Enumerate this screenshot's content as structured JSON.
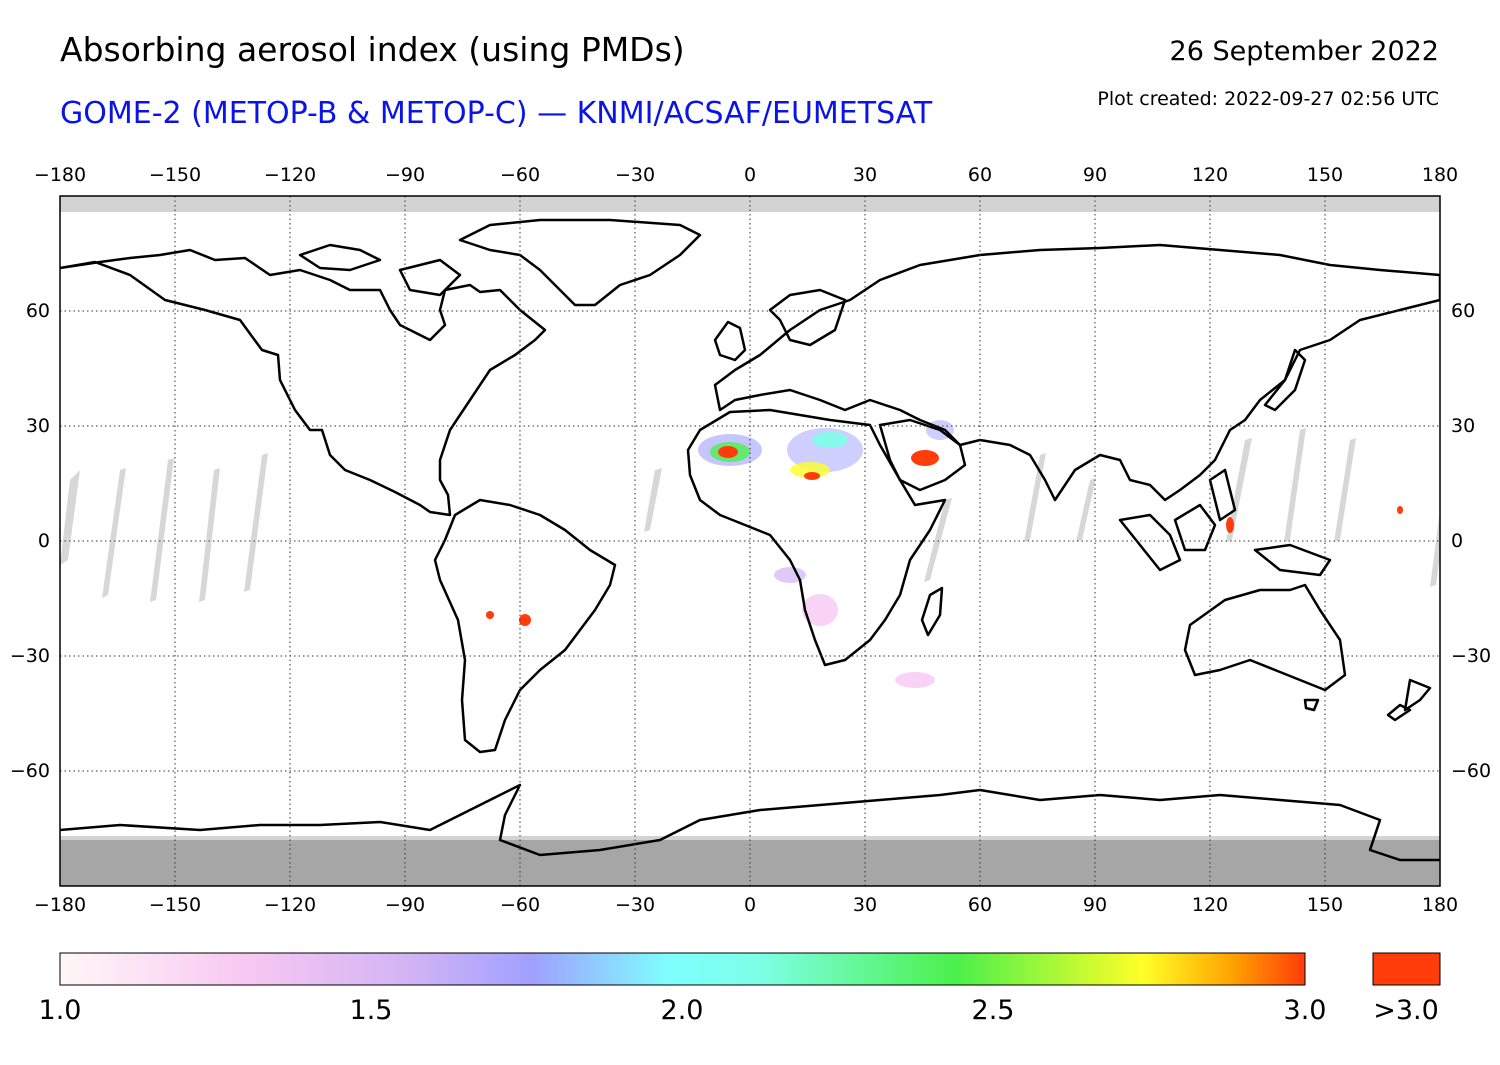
{
  "header": {
    "title": "Absorbing aerosol index (using PMDs)",
    "subtitle": "GOME-2 (METOP-B & METOP-C) — KNMI/ACSAF/EUMETSAT",
    "date": "26 September 2022",
    "created": "Plot created: 2022-09-27 02:56 UTC"
  },
  "map": {
    "projection": "equirectangular",
    "lon_range": [
      -180,
      180
    ],
    "lat_range": [
      -90,
      90
    ],
    "lon_ticks": [
      "−180",
      "−150",
      "−120",
      "−90",
      "−60",
      "−30",
      "0",
      "30",
      "60",
      "90",
      "120",
      "150",
      "180"
    ],
    "lat_ticks": [
      "60",
      "30",
      "0",
      "−30",
      "−60"
    ],
    "grid": "dotted",
    "no_data_color": "#d3d3d3",
    "polar_night_color": "#a6a6a6",
    "coastline_color": "#000000"
  },
  "colorbar": {
    "min_label": "1.0",
    "mid_labels": [
      "1.5",
      "2.0",
      "2.5"
    ],
    "max_label": "3.0",
    "overflow_label": ">3.0",
    "overflow_color": "#ff3c0a",
    "stops": [
      "#fff7f7",
      "#f7c8f2",
      "#d2b4f4",
      "#a0a0ff",
      "#7ee8ff",
      "#7effe8",
      "#4bf04b",
      "#ffff28",
      "#ffa500",
      "#ff3c0a"
    ]
  }
}
